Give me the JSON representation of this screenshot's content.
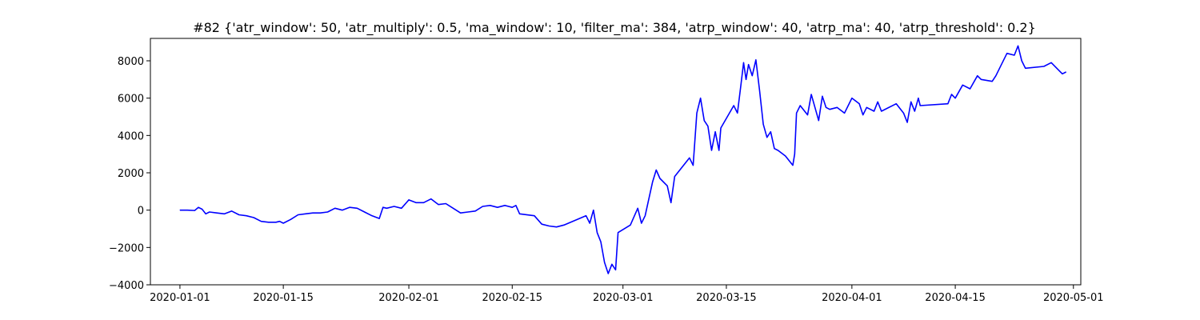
{
  "chart_data": {
    "type": "line",
    "title": "#82 {'atr_window': 50, 'atr_multiply': 0.5, 'ma_window': 10, 'filter_ma': 384, 'atrp_window': 40, 'atrp_ma': 40, 'atrp_threshold': 0.2}",
    "xlabel": "",
    "ylabel": "",
    "x_axis": "date",
    "xlim": [
      "2019-12-28",
      "2020-05-02"
    ],
    "ylim": [
      -4000,
      9200
    ],
    "grid": false,
    "xticks": [
      {
        "date": "2020-01-01",
        "label": "2020-01-01"
      },
      {
        "date": "2020-01-15",
        "label": "2020-01-15"
      },
      {
        "date": "2020-02-01",
        "label": "2020-02-01"
      },
      {
        "date": "2020-02-15",
        "label": "2020-02-15"
      },
      {
        "date": "2020-03-01",
        "label": "2020-03-01"
      },
      {
        "date": "2020-03-15",
        "label": "2020-03-15"
      },
      {
        "date": "2020-04-01",
        "label": "2020-04-01"
      },
      {
        "date": "2020-04-15",
        "label": "2020-04-15"
      },
      {
        "date": "2020-05-01",
        "label": "2020-05-01"
      }
    ],
    "yticks": [
      {
        "value": -4000,
        "label": "−4000"
      },
      {
        "value": -2000,
        "label": "−2000"
      },
      {
        "value": 0,
        "label": "0"
      },
      {
        "value": 2000,
        "label": "2000"
      },
      {
        "value": 4000,
        "label": "4000"
      },
      {
        "value": 6000,
        "label": "6000"
      },
      {
        "value": 8000,
        "label": "8000"
      }
    ],
    "series": [
      {
        "color": "#0000ff",
        "points": [
          [
            "2020-01-01",
            0
          ],
          [
            "2020-01-02",
            0
          ],
          [
            "2020-01-03",
            -20
          ],
          [
            "2020-01-03T12:00",
            150
          ],
          [
            "2020-01-04",
            50
          ],
          [
            "2020-01-04T12:00",
            -200
          ],
          [
            "2020-01-05",
            -100
          ],
          [
            "2020-01-06",
            -150
          ],
          [
            "2020-01-07",
            -200
          ],
          [
            "2020-01-08",
            -50
          ],
          [
            "2020-01-09",
            -250
          ],
          [
            "2020-01-10",
            -300
          ],
          [
            "2020-01-11",
            -400
          ],
          [
            "2020-01-12",
            -600
          ],
          [
            "2020-01-13",
            -650
          ],
          [
            "2020-01-14",
            -650
          ],
          [
            "2020-01-14T12:00",
            -600
          ],
          [
            "2020-01-15",
            -700
          ],
          [
            "2020-01-16",
            -500
          ],
          [
            "2020-01-17",
            -250
          ],
          [
            "2020-01-18",
            -200
          ],
          [
            "2020-01-19",
            -150
          ],
          [
            "2020-01-20",
            -150
          ],
          [
            "2020-01-21",
            -100
          ],
          [
            "2020-01-22",
            100
          ],
          [
            "2020-01-23",
            0
          ],
          [
            "2020-01-24",
            150
          ],
          [
            "2020-01-25",
            100
          ],
          [
            "2020-01-26",
            -100
          ],
          [
            "2020-01-27",
            -300
          ],
          [
            "2020-01-28",
            -450
          ],
          [
            "2020-01-28T12:00",
            150
          ],
          [
            "2020-01-29",
            100
          ],
          [
            "2020-01-30",
            200
          ],
          [
            "2020-01-31",
            100
          ],
          [
            "2020-02-01",
            550
          ],
          [
            "2020-02-02",
            400
          ],
          [
            "2020-02-03",
            400
          ],
          [
            "2020-02-04",
            600
          ],
          [
            "2020-02-05",
            300
          ],
          [
            "2020-02-06",
            350
          ],
          [
            "2020-02-07",
            100
          ],
          [
            "2020-02-08",
            -150
          ],
          [
            "2020-02-09",
            -100
          ],
          [
            "2020-02-10",
            -50
          ],
          [
            "2020-02-11",
            200
          ],
          [
            "2020-02-12",
            250
          ],
          [
            "2020-02-13",
            150
          ],
          [
            "2020-02-14",
            250
          ],
          [
            "2020-02-15",
            150
          ],
          [
            "2020-02-15T12:00",
            250
          ],
          [
            "2020-02-16",
            -200
          ],
          [
            "2020-02-18",
            -300
          ],
          [
            "2020-02-19",
            -750
          ],
          [
            "2020-02-20",
            -850
          ],
          [
            "2020-02-21",
            -900
          ],
          [
            "2020-02-22",
            -800
          ],
          [
            "2020-02-25",
            -300
          ],
          [
            "2020-02-25T12:00",
            -700
          ],
          [
            "2020-02-26",
            0
          ],
          [
            "2020-02-26T12:00",
            -1200
          ],
          [
            "2020-02-27",
            -1700
          ],
          [
            "2020-02-27T12:00",
            -2800
          ],
          [
            "2020-02-28",
            -3400
          ],
          [
            "2020-02-28T12:00",
            -2900
          ],
          [
            "2020-02-29",
            -3200
          ],
          [
            "2020-02-29T08:00",
            -1200
          ],
          [
            "2020-03-02",
            -800
          ],
          [
            "2020-03-03",
            100
          ],
          [
            "2020-03-03T12:00",
            -700
          ],
          [
            "2020-03-04",
            -300
          ],
          [
            "2020-03-05",
            1500
          ],
          [
            "2020-03-05T12:00",
            2150
          ],
          [
            "2020-03-06",
            1700
          ],
          [
            "2020-03-07",
            1300
          ],
          [
            "2020-03-07T12:00",
            400
          ],
          [
            "2020-03-08",
            1800
          ],
          [
            "2020-03-10",
            2800
          ],
          [
            "2020-03-10T12:00",
            2400
          ],
          [
            "2020-03-11",
            5200
          ],
          [
            "2020-03-11T12:00",
            6000
          ],
          [
            "2020-03-12",
            4800
          ],
          [
            "2020-03-12T12:00",
            4500
          ],
          [
            "2020-03-13",
            3200
          ],
          [
            "2020-03-13T12:00",
            4200
          ],
          [
            "2020-03-14",
            3200
          ],
          [
            "2020-03-14T06:00",
            4400
          ],
          [
            "2020-03-16",
            5600
          ],
          [
            "2020-03-16T12:00",
            5200
          ],
          [
            "2020-03-17",
            6800
          ],
          [
            "2020-03-17T08:00",
            7900
          ],
          [
            "2020-03-17T16:00",
            7000
          ],
          [
            "2020-03-18",
            7800
          ],
          [
            "2020-03-18T12:00",
            7200
          ],
          [
            "2020-03-19",
            8050
          ],
          [
            "2020-03-19T12:00",
            6400
          ],
          [
            "2020-03-20",
            4600
          ],
          [
            "2020-03-20T12:00",
            3900
          ],
          [
            "2020-03-21",
            4200
          ],
          [
            "2020-03-21T12:00",
            3300
          ],
          [
            "2020-03-22",
            3200
          ],
          [
            "2020-03-23",
            2900
          ],
          [
            "2020-03-24",
            2400
          ],
          [
            "2020-03-24T06:00",
            3000
          ],
          [
            "2020-03-24T12:00",
            5200
          ],
          [
            "2020-03-25",
            5600
          ],
          [
            "2020-03-26",
            5100
          ],
          [
            "2020-03-26T12:00",
            6200
          ],
          [
            "2020-03-27",
            5500
          ],
          [
            "2020-03-27T12:00",
            4800
          ],
          [
            "2020-03-28",
            6100
          ],
          [
            "2020-03-28T12:00",
            5500
          ],
          [
            "2020-03-29",
            5400
          ],
          [
            "2020-03-30",
            5500
          ],
          [
            "2020-03-31",
            5200
          ],
          [
            "2020-04-01",
            6000
          ],
          [
            "2020-04-02",
            5700
          ],
          [
            "2020-04-02T12:00",
            5100
          ],
          [
            "2020-04-03",
            5500
          ],
          [
            "2020-04-04",
            5300
          ],
          [
            "2020-04-04T12:00",
            5800
          ],
          [
            "2020-04-05",
            5300
          ],
          [
            "2020-04-07",
            5700
          ],
          [
            "2020-04-08",
            5200
          ],
          [
            "2020-04-08T12:00",
            4700
          ],
          [
            "2020-04-09",
            5800
          ],
          [
            "2020-04-09T12:00",
            5300
          ],
          [
            "2020-04-10",
            6000
          ],
          [
            "2020-04-10T06:00",
            5600
          ],
          [
            "2020-04-14",
            5700
          ],
          [
            "2020-04-14T12:00",
            6200
          ],
          [
            "2020-04-15",
            6000
          ],
          [
            "2020-04-16",
            6700
          ],
          [
            "2020-04-17",
            6500
          ],
          [
            "2020-04-18",
            7200
          ],
          [
            "2020-04-18T12:00",
            7000
          ],
          [
            "2020-04-20",
            6900
          ],
          [
            "2020-04-20T12:00",
            7200
          ],
          [
            "2020-04-21",
            7600
          ],
          [
            "2020-04-22",
            8400
          ],
          [
            "2020-04-23",
            8300
          ],
          [
            "2020-04-23T12:00",
            8800
          ],
          [
            "2020-04-24",
            8000
          ],
          [
            "2020-04-24T12:00",
            7600
          ],
          [
            "2020-04-27",
            7700
          ],
          [
            "2020-04-28",
            7900
          ],
          [
            "2020-04-29",
            7500
          ],
          [
            "2020-04-29T12:00",
            7300
          ],
          [
            "2020-04-30",
            7400
          ]
        ]
      }
    ]
  }
}
